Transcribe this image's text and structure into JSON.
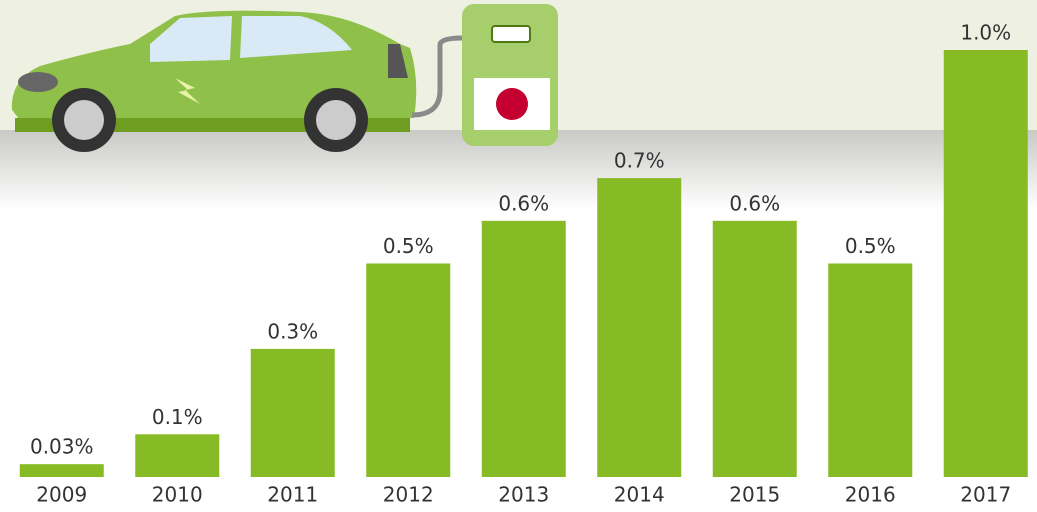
{
  "chart_data": {
    "type": "bar",
    "categories": [
      "2009",
      "2010",
      "2011",
      "2012",
      "2013",
      "2014",
      "2015",
      "2016",
      "2017"
    ],
    "values": [
      0.03,
      0.1,
      0.3,
      0.5,
      0.6,
      0.7,
      0.6,
      0.5,
      1.0
    ],
    "value_labels": [
      "0.03%",
      "0.1%",
      "0.3%",
      "0.5%",
      "0.6%",
      "0.7%",
      "0.6%",
      "0.5%",
      "1.0%"
    ],
    "color": "#86bb25"
  }
}
